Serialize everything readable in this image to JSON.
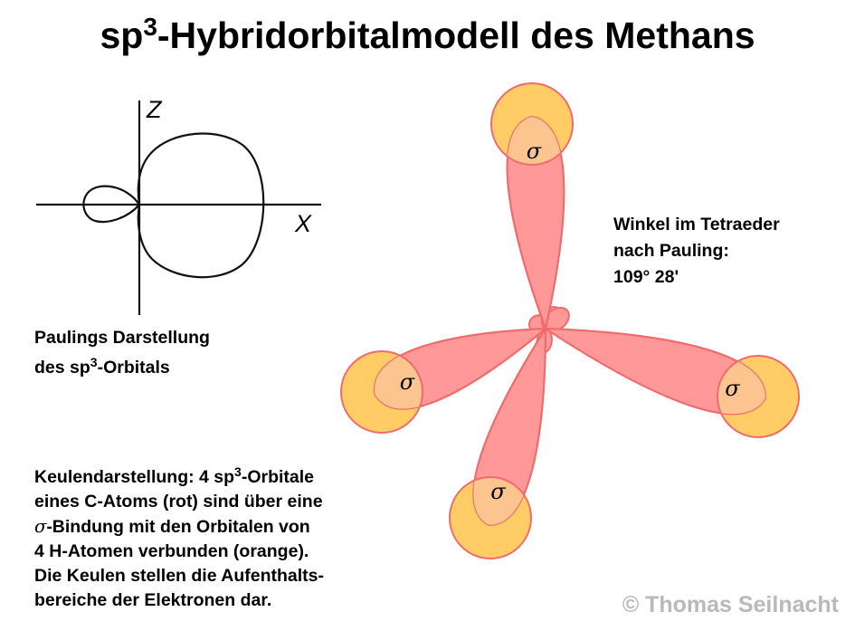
{
  "title": {
    "pre": "sp",
    "sup": "3",
    "post": "-Hybridorbitalmodell des Methans"
  },
  "pauling_plot": {
    "axis_z": "Z",
    "axis_x": "X"
  },
  "pauling_caption": {
    "line1": "Paulings Darstellung",
    "line2_pre": "des sp",
    "line2_sup": "3",
    "line2_post": "-Orbitals"
  },
  "angle_note": {
    "line1": "Winkel im Tetraeder",
    "line2": "nach Pauling:",
    "line3": "109° 28'"
  },
  "sigma_label": "σ",
  "description": {
    "line1_pre": "Keulendarstellung: 4 sp",
    "line1_sup": "3",
    "line1_post": "-Orbitale",
    "line2": "eines C-Atoms (rot) sind über eine",
    "line3_sigma": "σ",
    "line3_post": "-Bindung mit den Orbitalen von",
    "line4": "4 H-Atomen verbunden (orange).",
    "line5": "Die Keulen stellen die Aufenthalts-",
    "line6": "bereiche der Elektronen dar."
  },
  "copyright": "© Thomas Seilnacht",
  "colors": {
    "carbon_orbital": "#ff9999",
    "hydrogen_orbital": "#ffcc66",
    "overlap": "#fcc590",
    "outline": "#f06b6b"
  }
}
